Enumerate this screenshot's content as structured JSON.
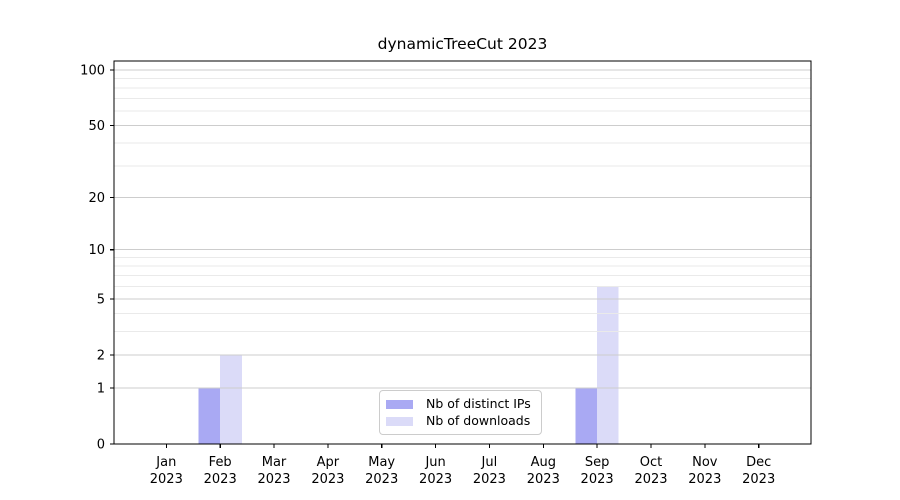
{
  "chart_data": {
    "type": "bar",
    "title": "dynamicTreeCut 2023",
    "categories": [
      "Jan",
      "Feb",
      "Mar",
      "Apr",
      "May",
      "Jun",
      "Jul",
      "Aug",
      "Sep",
      "Oct",
      "Nov",
      "Dec"
    ],
    "x_tick_year": "2023",
    "series": [
      {
        "name": "Nb of distinct IPs",
        "color": "#a9a9f3",
        "values": [
          0,
          1,
          0,
          0,
          0,
          0,
          0,
          0,
          1,
          0,
          0,
          0
        ]
      },
      {
        "name": "Nb of downloads",
        "color": "#dbdbf8",
        "values": [
          0,
          2,
          0,
          0,
          0,
          0,
          0,
          0,
          6,
          0,
          0,
          0
        ]
      }
    ],
    "y_axis": {
      "scale": "log10(1+x)",
      "tick_labels": [
        0,
        1,
        2,
        5,
        10,
        20,
        50,
        100
      ],
      "minor_gridlines": [
        3,
        4,
        6,
        7,
        8,
        9,
        30,
        40,
        60,
        70,
        80,
        90
      ],
      "ylim": [
        0,
        112
      ]
    },
    "xlabel": "",
    "ylabel": "",
    "grid": true,
    "legend": {
      "position": "lower center",
      "entries": [
        "Nb of distinct IPs",
        "Nb of downloads"
      ]
    },
    "colors": {
      "grid_major": "#cdcdcd",
      "grid_minor": "#eaeaea",
      "axis": "#000000",
      "text": "#000000",
      "legend_border": "#cccccc",
      "background": "#ffffff"
    }
  }
}
